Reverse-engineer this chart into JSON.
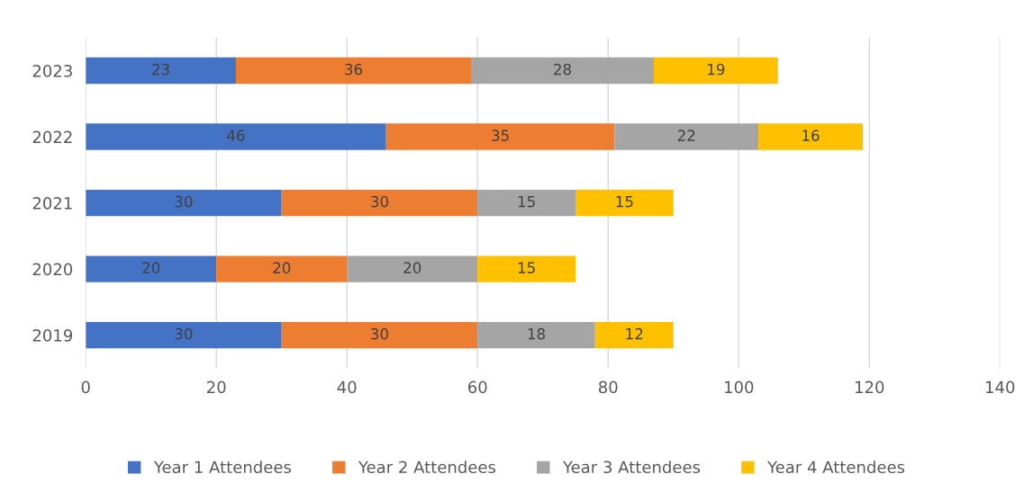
{
  "chart_data": {
    "type": "bar",
    "orientation": "horizontal",
    "stacked": true,
    "data_labels": true,
    "categories": [
      "2023",
      "2022",
      "2021",
      "2020",
      "2019"
    ],
    "series": [
      {
        "name": "Year 1 Attendees",
        "color": "#4472c4",
        "values": [
          23,
          46,
          30,
          20,
          30
        ]
      },
      {
        "name": "Year 2 Attendees",
        "color": "#ed7d31",
        "values": [
          36,
          35,
          30,
          20,
          30
        ]
      },
      {
        "name": "Year 3 Attendees",
        "color": "#a5a5a5",
        "values": [
          28,
          22,
          15,
          20,
          18
        ]
      },
      {
        "name": "Year 4 Attendees",
        "color": "#ffc000",
        "values": [
          19,
          16,
          15,
          15,
          12
        ]
      }
    ],
    "xlim": [
      0,
      140
    ],
    "xticks": [
      0,
      20,
      40,
      60,
      80,
      100,
      120,
      140
    ],
    "grid": "x",
    "legend": "bottom"
  }
}
